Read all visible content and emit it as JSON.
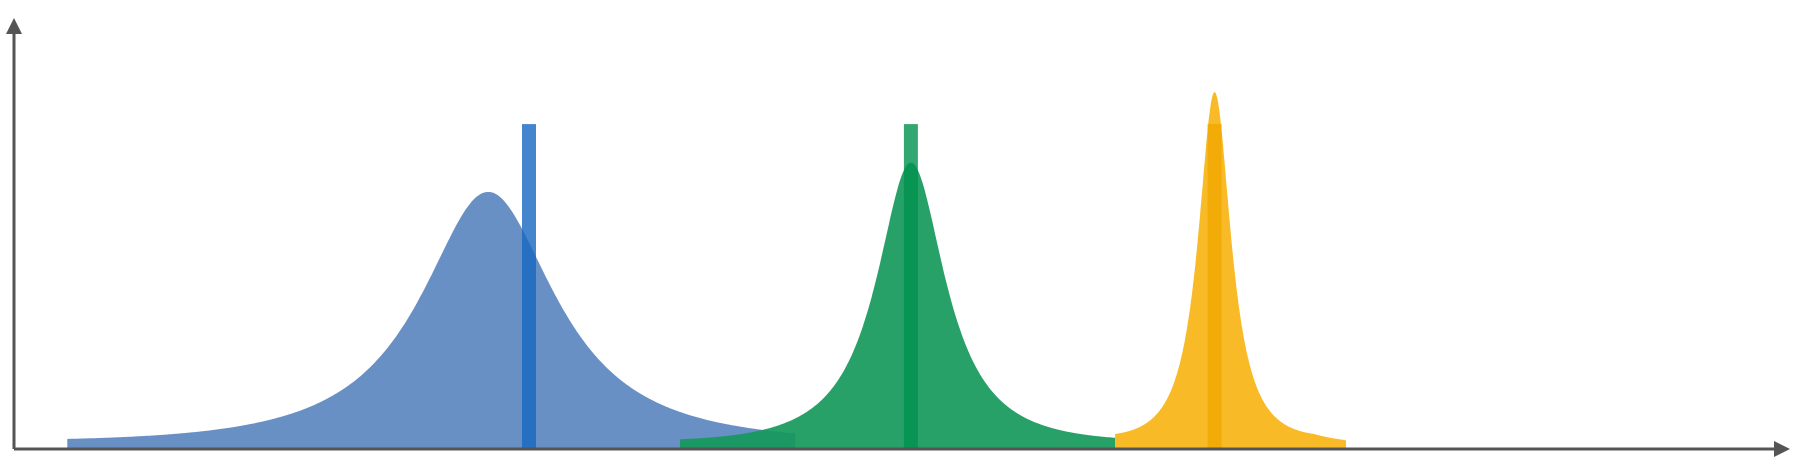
{
  "chart_data": {
    "type": "area",
    "title": "",
    "xlabel": "",
    "ylabel": "",
    "xlim": [
      0,
      100
    ],
    "ylim": [
      0,
      100
    ],
    "grid": false,
    "legend": "none",
    "axis_color": "#555555",
    "series": [
      {
        "shape": "lorentzian",
        "center": 26.7,
        "width": 4.7,
        "peak": 74,
        "color": "#5b87bf",
        "marker": {
          "x": 29.0,
          "height": 90,
          "color": "#1566c0"
        }
      },
      {
        "shape": "lorentzian",
        "center": 50.5,
        "width": 2.4,
        "peak": 82,
        "color": "#16995b",
        "marker": {
          "x": 50.5,
          "height": 90,
          "color": "#00914e"
        }
      },
      {
        "shape": "lorentzian",
        "center": 67.6,
        "width": 1.15,
        "peak": 103,
        "color": "#f7b515",
        "marker": {
          "x": 67.6,
          "height": 90,
          "color": "#f0a800"
        }
      }
    ]
  }
}
